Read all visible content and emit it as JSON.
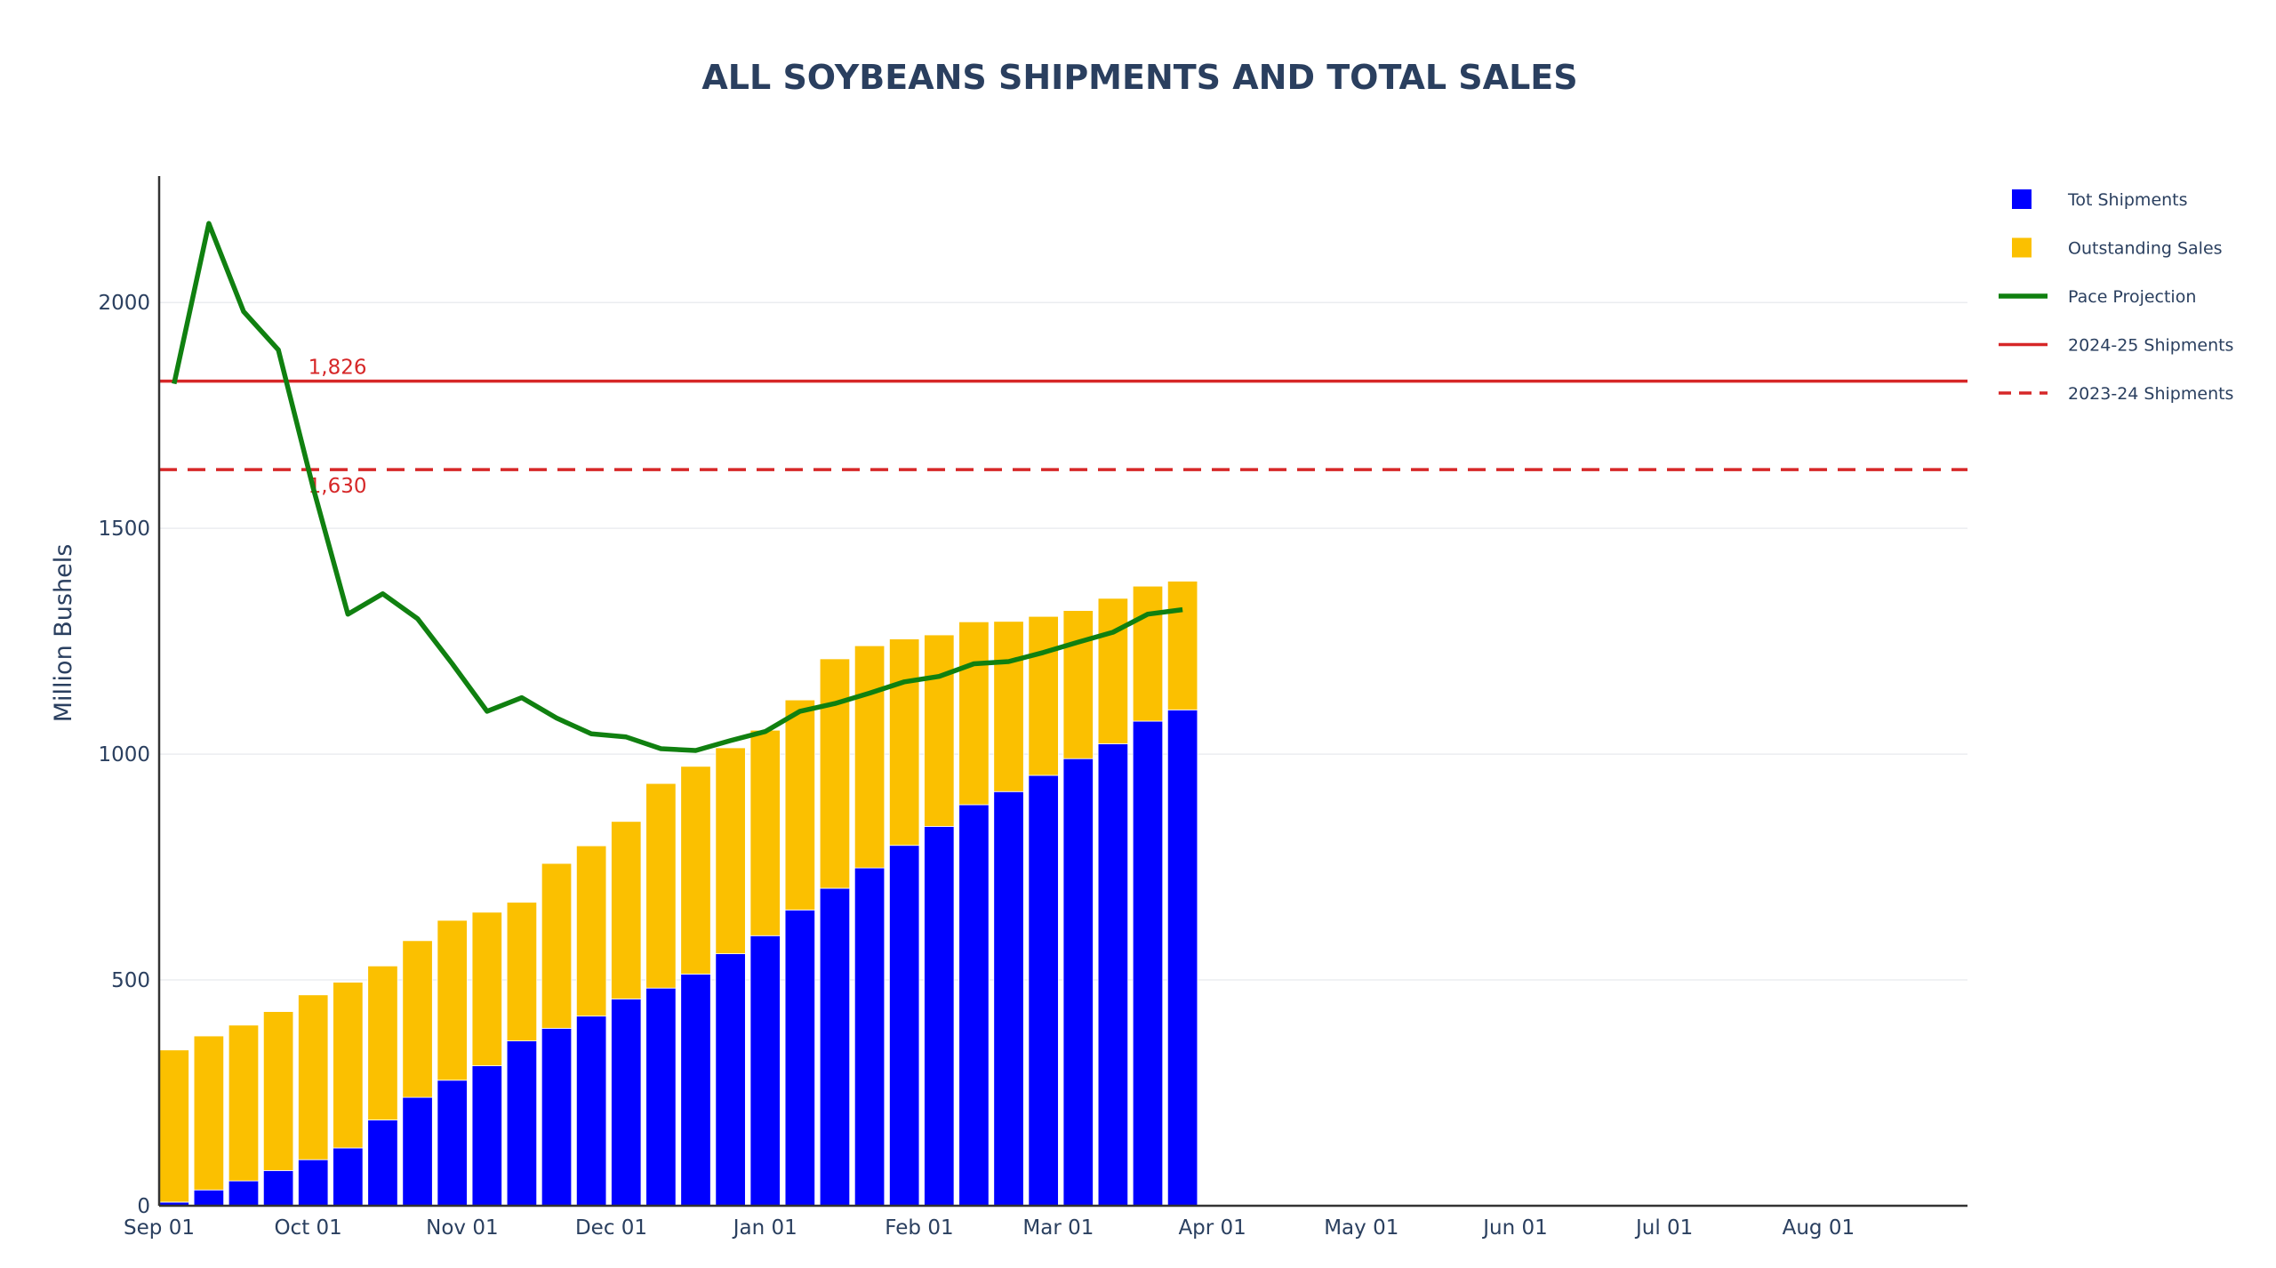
{
  "chart_data": {
    "type": "bar",
    "title": "ALL SOYBEANS SHIPMENTS AND TOTAL SALES",
    "ylabel": "Million Bushels",
    "xlabel": "",
    "ylim": [
      0,
      2280
    ],
    "yticks": [
      0,
      500,
      1000,
      1500,
      2000
    ],
    "xlim": [
      "2024-09-01",
      "2025-08-31"
    ],
    "xticks": [
      {
        "date": "2024-09-01",
        "label": "Sep 01"
      },
      {
        "date": "2024-10-01",
        "label": "Oct 01"
      },
      {
        "date": "2024-11-01",
        "label": "Nov 01"
      },
      {
        "date": "2024-12-01",
        "label": "Dec 01"
      },
      {
        "date": "2025-01-01",
        "label": "Jan 01"
      },
      {
        "date": "2025-02-01",
        "label": "Feb 01"
      },
      {
        "date": "2025-03-01",
        "label": "Mar 01"
      },
      {
        "date": "2025-04-01",
        "label": "Apr 01"
      },
      {
        "date": "2025-05-01",
        "label": "May 01"
      },
      {
        "date": "2025-06-01",
        "label": "Jun 01"
      },
      {
        "date": "2025-07-01",
        "label": "Jul 01"
      },
      {
        "date": "2025-08-01",
        "label": "Aug 01"
      }
    ],
    "barmode": "stack",
    "x": [
      "2024-09-04",
      "2024-09-11",
      "2024-09-18",
      "2024-09-25",
      "2024-10-02",
      "2024-10-09",
      "2024-10-16",
      "2024-10-23",
      "2024-10-30",
      "2024-11-06",
      "2024-11-13",
      "2024-11-20",
      "2024-11-27",
      "2024-12-04",
      "2024-12-11",
      "2024-12-18",
      "2024-12-25",
      "2025-01-01",
      "2025-01-08",
      "2025-01-15",
      "2025-01-22",
      "2025-01-29",
      "2025-02-05",
      "2025-02-12",
      "2025-02-19",
      "2025-02-26",
      "2025-03-05",
      "2025-03-12",
      "2025-03-19",
      "2025-03-26"
    ],
    "series": [
      {
        "name": "Tot Shipments",
        "type": "bar",
        "color": "#0000ff",
        "values": [
          8,
          35,
          55,
          78,
          102,
          128,
          190,
          240,
          278,
          310,
          365,
          393,
          420,
          458,
          482,
          513,
          558,
          598,
          655,
          703,
          748,
          798,
          840,
          888,
          917,
          953,
          990,
          1023,
          1073,
          1098
        ]
      },
      {
        "name": "Outstanding Sales",
        "type": "bar",
        "color": "#fbc000",
        "values": [
          337,
          341,
          345,
          352,
          365,
          367,
          341,
          347,
          354,
          340,
          307,
          365,
          377,
          393,
          453,
          460,
          456,
          455,
          465,
          508,
          492,
          457,
          424,
          405,
          377,
          352,
          328,
          322,
          299,
          285
        ]
      },
      {
        "name": "Pace Projection",
        "type": "line",
        "color": "#108010",
        "values": [
          1820,
          2175,
          1980,
          1895,
          1590,
          1310,
          1355,
          1300,
          1200,
          1095,
          1125,
          1080,
          1045,
          1038,
          1012,
          1008,
          1030,
          1050,
          1095,
          1112,
          1135,
          1160,
          1172,
          1200,
          1205,
          1225,
          1248,
          1270,
          1310,
          1320
        ]
      }
    ],
    "reference_lines": [
      {
        "name": "2024-25 Shipments",
        "value": 1826,
        "label": "1,826",
        "style": "solid",
        "color": "#d62728"
      },
      {
        "name": "2023-24 Shipments",
        "value": 1630,
        "label": "1,630",
        "style": "dashed",
        "color": "#d62728"
      }
    ],
    "legend_position": "top-right",
    "grid": "horizontal"
  }
}
